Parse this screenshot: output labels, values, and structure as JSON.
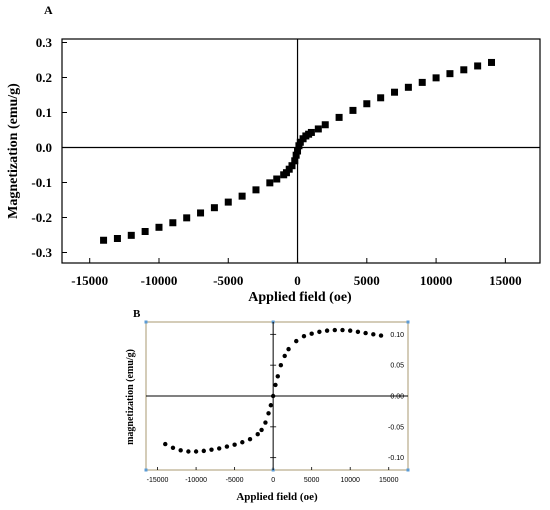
{
  "chart_data": [
    {
      "panel_label": "A",
      "type": "scatter",
      "xlabel": "Applied field (oe)",
      "ylabel": "Magnetization (emu/g)",
      "xlim": [
        -17000,
        17500
      ],
      "ylim": [
        -0.33,
        0.31
      ],
      "xticks": [
        -15000,
        -10000,
        -5000,
        0,
        5000,
        10000,
        15000
      ],
      "xtick_labels": [
        "-15000",
        "-10000",
        "-5000",
        "0",
        "5000",
        "10000",
        "15000"
      ],
      "yticks": [
        -0.3,
        -0.2,
        -0.1,
        0.0,
        0.1,
        0.2,
        0.3
      ],
      "ytick_labels": [
        "-0.3",
        "-0.2",
        "-0.1",
        "0.0",
        "0.1",
        "0.2",
        "0.3"
      ],
      "marker": "square",
      "color": "#000000",
      "x": [
        -14000,
        -13000,
        -12000,
        -11000,
        -10000,
        -9000,
        -8000,
        -7000,
        -6000,
        -5000,
        -4000,
        -3000,
        -2000,
        -1500,
        -1000,
        -800,
        -600,
        -400,
        -200,
        -100,
        0,
        100,
        200,
        400,
        600,
        800,
        1000,
        1500,
        2000,
        3000,
        4000,
        5000,
        6000,
        7000,
        8000,
        9000,
        10000,
        11000,
        12000,
        13000,
        14000
      ],
      "y": [
        -0.265,
        -0.26,
        -0.251,
        -0.24,
        -0.228,
        -0.215,
        -0.201,
        -0.187,
        -0.172,
        -0.156,
        -0.139,
        -0.121,
        -0.101,
        -0.09,
        -0.078,
        -0.072,
        -0.062,
        -0.052,
        -0.038,
        -0.022,
        -0.01,
        0.005,
        0.015,
        0.025,
        0.033,
        0.038,
        0.043,
        0.053,
        0.065,
        0.086,
        0.106,
        0.125,
        0.142,
        0.158,
        0.172,
        0.186,
        0.199,
        0.211,
        0.222,
        0.233,
        0.243
      ]
    },
    {
      "panel_label": "B",
      "type": "scatter",
      "xlabel": "Applied field (oe)",
      "ylabel": "magnetization (emu/g)",
      "xlim": [
        -16500,
        17500
      ],
      "ylim": [
        -0.12,
        0.12
      ],
      "xticks": [
        -15000,
        -10000,
        -5000,
        0,
        5000,
        10000,
        15000
      ],
      "xtick_labels": [
        "-15000",
        "-10000",
        "-5000",
        "0",
        "5000",
        "10000",
        "15000"
      ],
      "yticks": [
        -0.1,
        -0.05,
        0.0,
        0.05,
        0.1
      ],
      "ytick_labels": [
        "-0.10",
        "-0.05",
        "0.00",
        "0.05",
        "0.10"
      ],
      "marker": "circle",
      "color": "#000000",
      "frame_color": "#a89a70",
      "x": [
        -14000,
        -13000,
        -12000,
        -11000,
        -10000,
        -9000,
        -8000,
        -7000,
        -6000,
        -5000,
        -4000,
        -3000,
        -2000,
        -1500,
        -1000,
        -600,
        -300,
        0,
        300,
        600,
        1000,
        1500,
        2000,
        3000,
        4000,
        5000,
        6000,
        7000,
        8000,
        9000,
        10000,
        11000,
        12000,
        13000,
        14000
      ],
      "y": [
        -0.078,
        -0.084,
        -0.088,
        -0.09,
        -0.09,
        -0.089,
        -0.087,
        -0.085,
        -0.082,
        -0.079,
        -0.075,
        -0.07,
        -0.062,
        -0.055,
        -0.043,
        -0.028,
        -0.015,
        0.0,
        0.018,
        0.032,
        0.05,
        0.065,
        0.076,
        0.089,
        0.097,
        0.101,
        0.104,
        0.106,
        0.107,
        0.107,
        0.106,
        0.104,
        0.102,
        0.1,
        0.098
      ]
    }
  ]
}
